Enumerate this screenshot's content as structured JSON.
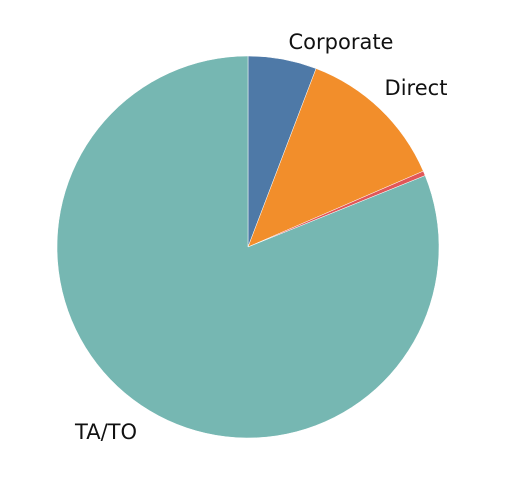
{
  "chart_data": {
    "type": "pie",
    "title": "",
    "legend": "none",
    "start_angle_deg": 0,
    "direction": "clockwise",
    "slices": [
      {
        "label": "Corporate",
        "value": 5.8,
        "color": "#4e79a7"
      },
      {
        "label": "Direct",
        "value": 12.7,
        "color": "#f28e2b"
      },
      {
        "label": "",
        "value": 0.4,
        "color": "#e15759"
      },
      {
        "label": "TA/TO",
        "value": 81.1,
        "color": "#76b7b2"
      }
    ]
  }
}
